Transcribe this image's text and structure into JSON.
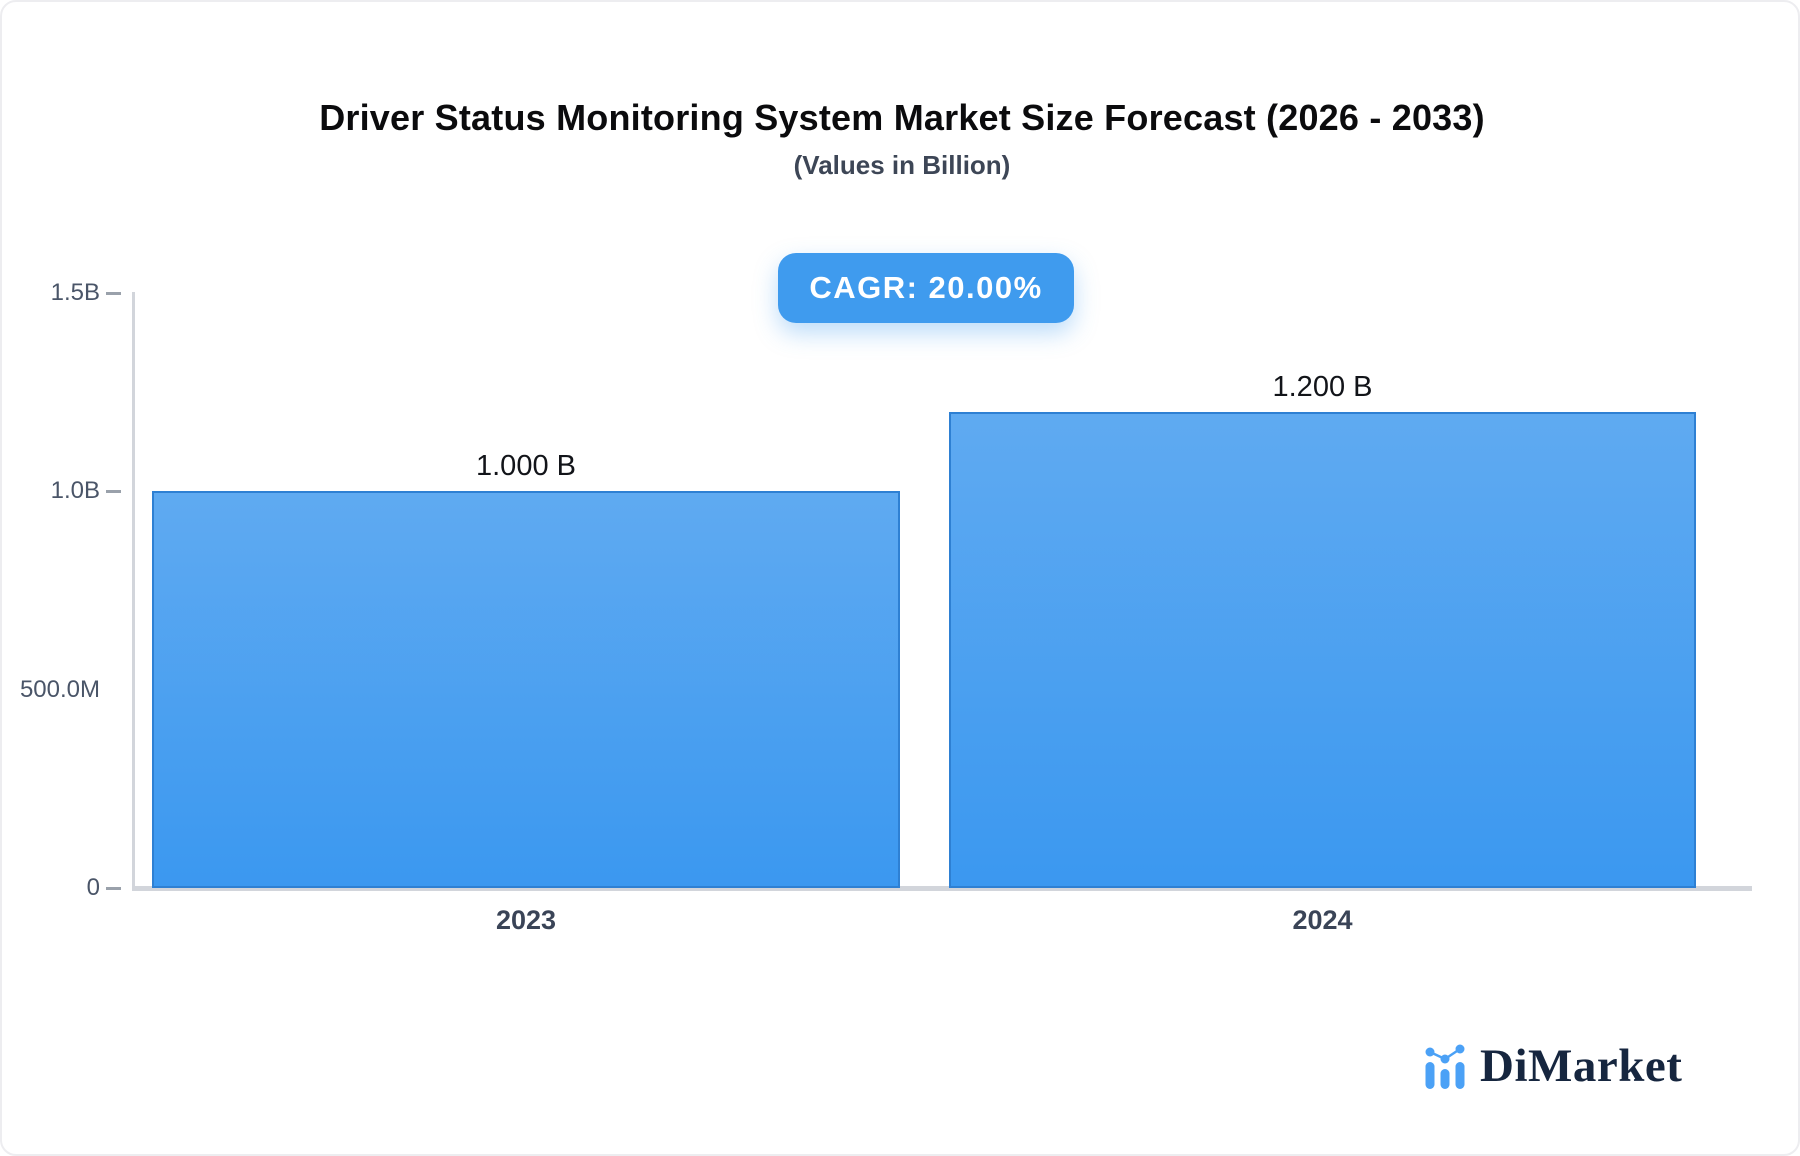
{
  "title": "Driver Status Monitoring System Market Size Forecast (2026 - 2033)",
  "subtitle": "(Values in Billion)",
  "cagr_badge": "CAGR: 20.00%",
  "brand": {
    "name": "DiMarket",
    "icon": "bar-chart-sparkline-logo-icon"
  },
  "colors": {
    "bar_fill_top": "#5FAAF1",
    "bar_fill_bottom": "#3B98F0",
    "bar_border": "#2E80D3",
    "badge_bg": "#3F9BEE",
    "axis_line": "#D2D5DB",
    "tick_text": "#4A5568",
    "category_text": "#3A4457",
    "logo_navy": "#16263F",
    "logo_blue": "#4BA1F6"
  },
  "chart_data": {
    "type": "bar",
    "title": "Driver Status Monitoring System Market Size Forecast (2026 - 2033)",
    "subtitle": "(Values in Billion)",
    "unit": "Billion",
    "cagr": "20.00%",
    "categories": [
      "2023",
      "2024"
    ],
    "values": [
      1.0,
      1.2
    ],
    "value_labels": [
      "1.000 B",
      "1.200 B"
    ],
    "ylim": [
      0,
      1.5
    ],
    "yticks": [
      {
        "label": "1.5B",
        "value": 1.5,
        "dash": true
      },
      {
        "label": "1.0B",
        "value": 1.0,
        "dash": true
      },
      {
        "label": "500.0M",
        "value": 0.5,
        "dash": false
      },
      {
        "label": "0",
        "value": 0,
        "dash": true
      }
    ],
    "grid": false,
    "legend": false,
    "bar_orientation": "vertical"
  }
}
